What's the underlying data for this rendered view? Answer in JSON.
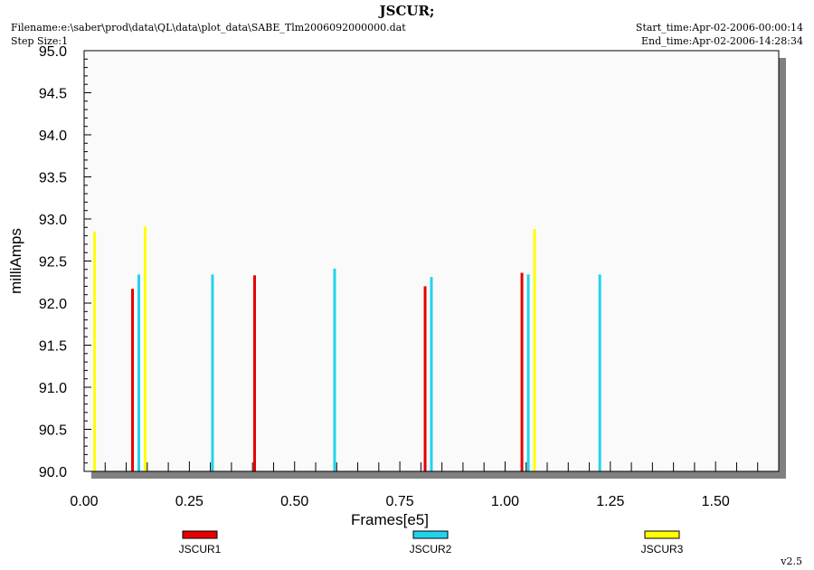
{
  "header": {
    "title": "JSCUR;",
    "filename": "Filename:e:\\saber\\prod\\data\\QL\\data\\plot_data\\SABE_Tlm2006092000000.dat",
    "step_size": "Step Size:1",
    "start_time": "Start_time:Apr-02-2006-00:00:14",
    "end_time": "End_time:Apr-02-2006-14:28:34"
  },
  "footer": {
    "version": "v2.5"
  },
  "colors": {
    "JSCUR1": "#e60000",
    "JSCUR2": "#22d3ee",
    "JSCUR3": "#ffff00",
    "plot_background": "#fafafa",
    "shadow": "#808080"
  },
  "chart_data": {
    "type": "bar",
    "xlabel": "Frames[e5]",
    "ylabel": "milliAmps",
    "xlim": [
      0,
      1.65
    ],
    "ylim": [
      90.0,
      95.0
    ],
    "x_ticks": [
      "0.00",
      "0.25",
      "0.50",
      "0.75",
      "1.00",
      "1.25",
      "1.50"
    ],
    "x_tick_values": [
      0,
      0.25,
      0.5,
      0.75,
      1.0,
      1.25,
      1.5
    ],
    "y_ticks": [
      "90.0",
      "90.5",
      "91.0",
      "91.5",
      "92.0",
      "92.5",
      "93.0",
      "93.5",
      "94.0",
      "94.5",
      "95.0"
    ],
    "y_tick_values": [
      90.0,
      90.5,
      91.0,
      91.5,
      92.0,
      92.5,
      93.0,
      93.5,
      94.0,
      94.5,
      95.0
    ],
    "grid": false,
    "legend_position": "bottom",
    "series": [
      {
        "name": "JSCUR1",
        "color": "#e60000",
        "x": [
          0.115,
          0.405,
          0.81,
          1.04
        ],
        "y": [
          92.17,
          92.33,
          92.2,
          92.36
        ]
      },
      {
        "name": "JSCUR2",
        "color": "#22d3ee",
        "x": [
          0.13,
          0.305,
          0.595,
          0.825,
          1.055,
          1.225
        ],
        "y": [
          92.34,
          92.34,
          92.41,
          92.31,
          92.34,
          92.34
        ]
      },
      {
        "name": "JSCUR3",
        "color": "#ffff00",
        "x": [
          0.025,
          0.145,
          1.07
        ],
        "y": [
          92.85,
          92.91,
          92.88
        ]
      }
    ]
  }
}
